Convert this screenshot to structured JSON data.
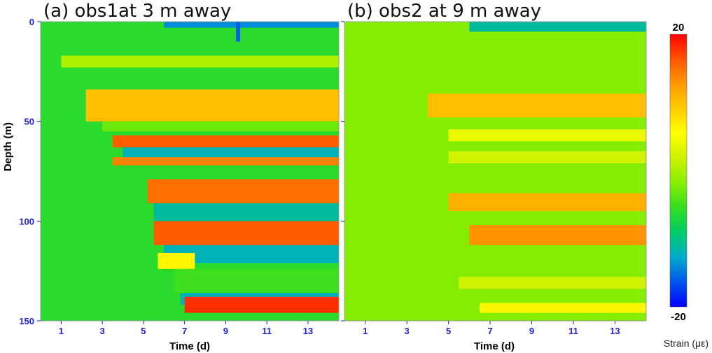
{
  "chart_data": {
    "type": "heatmap",
    "colorbar": {
      "label": "Strain (με)",
      "min": -20,
      "max": 20,
      "tick_labels": [
        "20",
        "-20"
      ],
      "colors": [
        "#0000ff",
        "#0055ee",
        "#00aacc",
        "#00cc66",
        "#33dd22",
        "#88ee00",
        "#ccf200",
        "#ffff00",
        "#ffcc00",
        "#ff9900",
        "#ff5500",
        "#ff0000"
      ]
    },
    "panels": [
      {
        "id": "a",
        "title": "(a) obs1at 3 m away",
        "xlabel": "Time (d)",
        "ylabel": "Depth (m)",
        "xlim": [
          0,
          14.5
        ],
        "ylim": [
          150,
          0
        ],
        "xticks": [
          1,
          3,
          5,
          7,
          9,
          11,
          13
        ],
        "yticks": [
          0,
          50,
          100,
          150
        ],
        "baseline": -6,
        "bands": [
          {
            "depth_start": 0,
            "depth_end": 3,
            "t_start": 6,
            "value": -14
          },
          {
            "depth_start": 0,
            "depth_end": 10,
            "t_start": 9.5,
            "t_end": 9.7,
            "value": -16
          },
          {
            "depth_start": 17,
            "depth_end": 23,
            "t_start": 1,
            "value": 0
          },
          {
            "depth_start": 34,
            "depth_end": 50,
            "t_start": 2.2,
            "value": 10
          },
          {
            "depth_start": 50,
            "depth_end": 55,
            "t_start": 3,
            "value": -3
          },
          {
            "depth_start": 57,
            "depth_end": 63,
            "t_start": 3.5,
            "value": 16
          },
          {
            "depth_start": 63,
            "depth_end": 68,
            "t_start": 4,
            "value": -12
          },
          {
            "depth_start": 68,
            "depth_end": 72,
            "t_start": 3.5,
            "value": 14
          },
          {
            "depth_start": 79,
            "depth_end": 91,
            "t_start": 5.2,
            "value": 15
          },
          {
            "depth_start": 91,
            "depth_end": 100,
            "t_start": 5.5,
            "value": -11
          },
          {
            "depth_start": 100,
            "depth_end": 112,
            "t_start": 5.5,
            "value": 16
          },
          {
            "depth_start": 112,
            "depth_end": 121,
            "t_start": 6,
            "value": -12
          },
          {
            "depth_start": 116,
            "depth_end": 124,
            "t_start": 5.7,
            "t_end": 7.5,
            "value": 6
          },
          {
            "depth_start": 124,
            "depth_end": 136,
            "t_start": 6.5,
            "value": -5
          },
          {
            "depth_start": 136,
            "depth_end": 142,
            "t_start": 6.8,
            "value": -12
          },
          {
            "depth_start": 138,
            "depth_end": 146,
            "t_start": 7,
            "value": 18
          }
        ]
      },
      {
        "id": "b",
        "title": "(b) obs2 at 9 m away",
        "xlabel": "Time (d)",
        "ylabel": "",
        "xlim": [
          0,
          14.5
        ],
        "ylim": [
          150,
          0
        ],
        "xticks": [
          1,
          3,
          5,
          7,
          9,
          11,
          13
        ],
        "yticks": [
          0,
          50,
          100,
          150
        ],
        "baseline": -2,
        "bands": [
          {
            "depth_start": 0,
            "depth_end": 5,
            "t_start": 6,
            "value": -11
          },
          {
            "depth_start": 36,
            "depth_end": 48,
            "t_start": 4,
            "value": 10
          },
          {
            "depth_start": 54,
            "depth_end": 60,
            "t_start": 5,
            "value": 4
          },
          {
            "depth_start": 65,
            "depth_end": 71,
            "t_start": 5,
            "value": 2
          },
          {
            "depth_start": 86,
            "depth_end": 95,
            "t_start": 5,
            "value": 11
          },
          {
            "depth_start": 102,
            "depth_end": 112,
            "t_start": 6,
            "value": 13
          },
          {
            "depth_start": 128,
            "depth_end": 134,
            "t_start": 5.5,
            "value": 2
          },
          {
            "depth_start": 141,
            "depth_end": 146,
            "t_start": 6.5,
            "value": 6
          }
        ]
      }
    ]
  }
}
